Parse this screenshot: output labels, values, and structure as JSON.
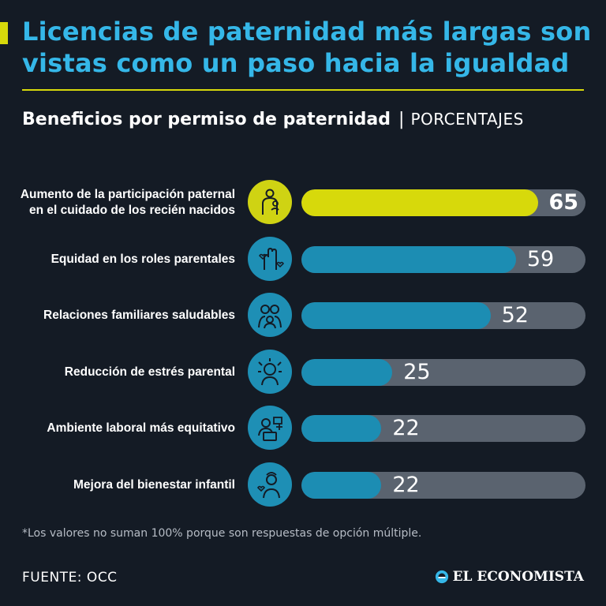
{
  "title": "Licencias de paternidad más largas son vistas como un paso hacia la igualdad",
  "subtitle": "Beneficios por permiso de paternidad",
  "subtitle_separator": "|",
  "subtitle_unit": "PORCENTAJES",
  "footnote": "*Los valores no suman 100% porque son respuestas de opción múltiple.",
  "source": "FUENTE: OCC",
  "brand": "EL ECONOMISTA",
  "colors": {
    "background": "#141b25",
    "title": "#35b7e8",
    "accent": "#d7d90b",
    "bar_fill": "#1c8db3",
    "bar_track": "#5a636f"
  },
  "chart_data": {
    "type": "bar",
    "orientation": "horizontal",
    "unit": "PORCENTAJES",
    "xlim": [
      0,
      100
    ],
    "categories": [
      "Aumento de la participación paternal en el cuidado de los recién nacidos",
      "Equidad en los roles parentales",
      "Relaciones familiares saludables",
      "Reducción de estrés parental",
      "Ambiente laboral más equitativo",
      "Mejora del bienestar infantil"
    ],
    "values": [
      65,
      59,
      52,
      25,
      22,
      22
    ],
    "highlighted_index": 0,
    "icons": [
      "father-baby-icon",
      "raised-hands-icon",
      "family-icon",
      "stress-icon",
      "laptop-worker-icon",
      "child-wellbeing-icon"
    ],
    "grid": false,
    "legend": "none"
  }
}
